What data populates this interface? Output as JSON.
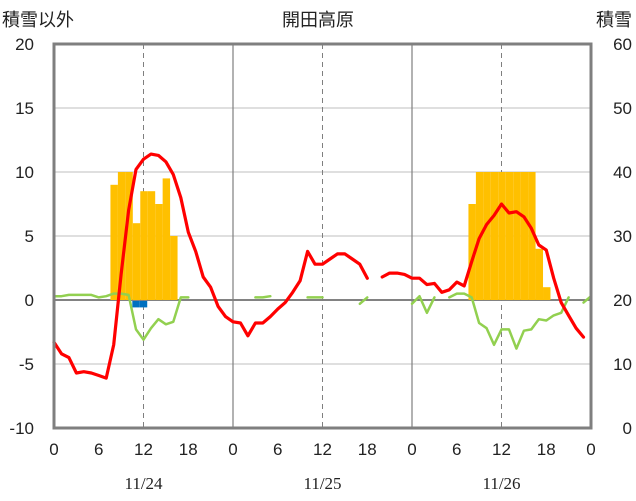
{
  "chart_data": {
    "type": "bar+line",
    "title": "開田高原",
    "left_axis_label": "積雪以外",
    "right_axis_label": "積雪",
    "left_ylim": [
      -10,
      20
    ],
    "right_ylim": [
      0,
      60
    ],
    "left_yticks": [
      "20",
      "15",
      "10",
      "5",
      "0",
      "-5",
      "-10"
    ],
    "right_yticks": [
      "60",
      "50",
      "40",
      "30",
      "20",
      "10",
      "0"
    ],
    "x_hour_ticks": [
      "0",
      "6",
      "12",
      "18",
      "0",
      "6",
      "12",
      "18",
      "0",
      "6",
      "12",
      "18",
      "0"
    ],
    "dates": [
      "11/24",
      "11/25",
      "11/26"
    ],
    "xlim_hours": [
      0,
      72
    ],
    "grid": true,
    "colors": {
      "snow_depth": "#FFC000",
      "temperature": "#FF0000",
      "precipitation_line": "#92D050",
      "blue_bar": "#0070C0",
      "purple_line": "#7030A0",
      "axis": "#7f7f7f"
    },
    "snow_depth_bars": {
      "axis": "right",
      "hours": [
        8,
        9,
        10,
        11,
        12,
        13,
        14,
        15,
        16,
        17,
        56,
        57,
        58,
        59,
        60,
        61,
        62,
        63,
        64,
        65,
        66,
        67
      ],
      "values": [
        38,
        40,
        40,
        32,
        37,
        37,
        35,
        39,
        30,
        20,
        35,
        40,
        40,
        40,
        40,
        40,
        40,
        40,
        40,
        28,
        22,
        20
      ]
    },
    "blue_bars": {
      "axis": "left",
      "hours": [
        11,
        12
      ],
      "values": [
        -0.5,
        -0.5
      ]
    },
    "temperature": {
      "axis": "left",
      "x": [
        0,
        1,
        2,
        3,
        4,
        5,
        6,
        7,
        8,
        9,
        10,
        11,
        12,
        13,
        14,
        15,
        16,
        17,
        18,
        19,
        20,
        21,
        22,
        23,
        24,
        25,
        26,
        27,
        28,
        29,
        30,
        31,
        32,
        33,
        34,
        35,
        36,
        37,
        38,
        39,
        40,
        41,
        42,
        43,
        44,
        45,
        46,
        47,
        48,
        49,
        50,
        51,
        52,
        53,
        54,
        55,
        56,
        57,
        58,
        59,
        60,
        61,
        62,
        63,
        64,
        65,
        66,
        67,
        68,
        69,
        70,
        71,
        72
      ],
      "y": [
        -3.3,
        -4.2,
        -4.5,
        -5.7,
        -5.6,
        -5.7,
        -5.9,
        -6.1,
        -3.5,
        2,
        7,
        10.2,
        11,
        11.4,
        11.3,
        10.8,
        9.8,
        8,
        5.3,
        3.8,
        1.8,
        1,
        -0.5,
        -1.3,
        -1.7,
        -1.8,
        -2.8,
        -1.8,
        -1.8,
        -1.3,
        -0.7,
        -0.2,
        0.6,
        1.5,
        3.8,
        2.8,
        2.8,
        3.2,
        3.6,
        3.6,
        3.2,
        2.8,
        1.7,
        null,
        1.8,
        2.1,
        2.1,
        2,
        1.7,
        1.7,
        1.2,
        1.3,
        0.6,
        0.8,
        1.4,
        1.1,
        3,
        4.8,
        5.9,
        6.6,
        7.5,
        6.8,
        6.9,
        6.5,
        5.6,
        4.3,
        3.9,
        1.7,
        -0.2,
        -1.2,
        -2.2,
        -2.9,
        null
      ],
      "connect_gaps": false
    },
    "precipitation_line": {
      "axis": "left",
      "x": [
        0,
        1,
        2,
        3,
        4,
        5,
        6,
        7,
        8,
        9,
        10,
        11,
        12,
        13,
        14,
        15,
        16,
        17,
        18,
        19,
        20,
        21,
        22,
        23,
        24,
        25,
        26,
        27,
        28,
        29,
        30,
        31,
        32,
        33,
        34,
        35,
        36,
        37,
        38,
        39,
        40,
        41,
        42,
        43,
        44,
        45,
        46,
        47,
        48,
        49,
        50,
        51,
        52,
        53,
        54,
        55,
        56,
        57,
        58,
        59,
        60,
        61,
        62,
        63,
        64,
        65,
        66,
        67,
        68,
        69,
        70,
        71,
        72
      ],
      "y": [
        0.3,
        0.3,
        0.4,
        0.4,
        0.4,
        0.4,
        0.2,
        0.3,
        0.5,
        0.5,
        0.4,
        -2.3,
        -3.1,
        -2.2,
        -1.5,
        -1.9,
        -1.7,
        0.2,
        0.2,
        null,
        null,
        null,
        null,
        null,
        null,
        null,
        null,
        0.2,
        0.2,
        0.3,
        null,
        null,
        null,
        null,
        0.2,
        0.2,
        0.2,
        null,
        null,
        null,
        null,
        -0.3,
        0.2,
        null,
        0.2,
        null,
        null,
        null,
        -0.3,
        0.3,
        -1,
        0.2,
        null,
        0.2,
        0.5,
        0.5,
        0.2,
        -1.8,
        -2.2,
        -3.5,
        -2.3,
        -2.3,
        -3.8,
        -2.4,
        -2.3,
        -1.5,
        -1.6,
        -1.2,
        -1,
        0.2,
        null,
        -0.2,
        0.3
      ],
      "connect_gaps": false
    },
    "purple_line": {
      "axis": "left",
      "x": [
        0,
        72
      ],
      "y": [
        -10,
        -10
      ]
    }
  }
}
